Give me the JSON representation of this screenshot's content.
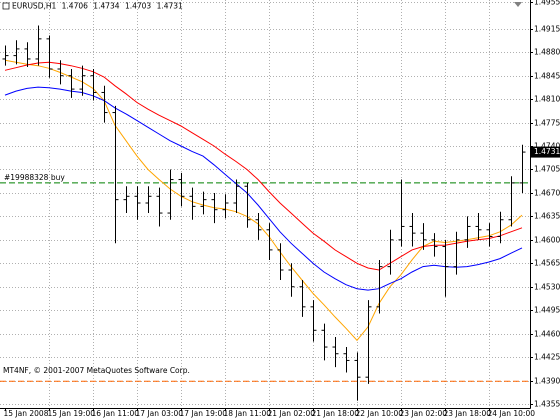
{
  "chart_data": {
    "type": "candlestick",
    "header": {
      "symbol": "EURUSD,H1",
      "open": 1.4706,
      "high": 1.4734,
      "low": 1.4703,
      "close": 1.4731
    },
    "copyright": "MT4NF, © 2001-2007 MetaQuotes Software Corp.",
    "categories": [
      "15 Jan 2008",
      null,
      null,
      null,
      "15 Jan 19:00",
      null,
      null,
      null,
      "16 Jan 11:00",
      null,
      null,
      null,
      "17 Jan 03:00",
      null,
      null,
      null,
      "17 Jan 19:00",
      null,
      null,
      null,
      "18 Jan 11:00",
      null,
      null,
      null,
      "21 Jan 02:00",
      null,
      null,
      null,
      "21 Jan 18:00",
      null,
      null,
      null,
      "22 Jan 10:00",
      null,
      null,
      null,
      "23 Jan 02:00",
      null,
      null,
      null,
      "23 Jan 18:00",
      null,
      null,
      null,
      "24 Jan 10:00",
      null,
      null,
      null
    ],
    "open": [
      1.487,
      1.4875,
      1.4885,
      1.487,
      1.49,
      1.4855,
      1.4845,
      1.4825,
      1.4845,
      1.482,
      1.479,
      1.466,
      1.4665,
      1.4655,
      1.4665,
      1.464,
      1.469,
      1.4665,
      1.465,
      1.466,
      1.4645,
      1.4655,
      1.468,
      1.463,
      1.4615,
      1.4585,
      1.4555,
      1.453,
      1.45,
      1.4465,
      1.444,
      1.443,
      1.442,
      1.4395,
      1.45,
      1.456,
      1.46,
      1.462,
      1.461,
      1.46,
      1.459,
      1.456,
      1.46,
      1.462,
      1.4615,
      1.4605,
      1.463,
      1.4685
    ],
    "high": [
      1.489,
      1.4898,
      1.4895,
      1.492,
      1.4905,
      1.4868,
      1.4855,
      1.486,
      1.4855,
      1.483,
      1.48,
      1.468,
      1.468,
      1.468,
      1.4678,
      1.4705,
      1.47,
      1.4678,
      1.4672,
      1.467,
      1.4668,
      1.469,
      1.4685,
      1.464,
      1.4625,
      1.4595,
      1.4565,
      1.454,
      1.451,
      1.4475,
      1.4455,
      1.444,
      1.4432,
      1.451,
      1.457,
      1.4615,
      1.469,
      1.464,
      1.4625,
      1.461,
      1.46,
      1.4612,
      1.4635,
      1.464,
      1.4625,
      1.4642,
      1.4695,
      1.4742
    ],
    "low": [
      1.486,
      1.4862,
      1.4858,
      1.486,
      1.4842,
      1.4832,
      1.4812,
      1.4815,
      1.4808,
      1.4775,
      1.4595,
      1.464,
      1.463,
      1.464,
      1.462,
      1.463,
      1.465,
      1.463,
      1.4638,
      1.4625,
      1.4632,
      1.464,
      1.4618,
      1.46,
      1.457,
      1.454,
      1.4515,
      1.4485,
      1.4448,
      1.442,
      1.441,
      1.4402,
      1.436,
      1.4385,
      1.449,
      1.4548,
      1.459,
      1.459,
      1.4585,
      1.4575,
      1.4515,
      1.4548,
      1.4588,
      1.46,
      1.459,
      1.4595,
      1.462,
      1.467
    ],
    "close": [
      1.4875,
      1.4885,
      1.487,
      1.49,
      1.4855,
      1.4845,
      1.4825,
      1.4845,
      1.482,
      1.479,
      1.466,
      1.4665,
      1.4655,
      1.4665,
      1.464,
      1.469,
      1.4665,
      1.465,
      1.466,
      1.4645,
      1.4655,
      1.468,
      1.463,
      1.4615,
      1.4585,
      1.4555,
      1.453,
      1.45,
      1.4465,
      1.444,
      1.443,
      1.442,
      1.4395,
      1.45,
      1.456,
      1.46,
      1.462,
      1.461,
      1.46,
      1.459,
      1.456,
      1.46,
      1.462,
      1.4615,
      1.4605,
      1.463,
      1.4685,
      1.4731
    ],
    "bar_color": "#000000",
    "moving_averages": [
      {
        "color": "#ffa500",
        "values": [
          1.4868,
          1.4865,
          1.4862,
          1.486,
          1.4856,
          1.485,
          1.4843,
          1.4836,
          1.4826,
          1.4808,
          1.4771,
          1.4748,
          1.4725,
          1.4705,
          1.469,
          1.4676,
          1.4665,
          1.4657,
          1.4652,
          1.4648,
          1.4646,
          1.4642,
          1.4635,
          1.4624,
          1.4605,
          1.4582,
          1.456,
          1.454,
          1.452,
          1.4503,
          1.4485,
          1.4468,
          1.445,
          1.447,
          1.4505,
          1.453,
          1.4548,
          1.457,
          1.459,
          1.4598,
          1.4596,
          1.4598,
          1.46,
          1.4603,
          1.4606,
          1.4612,
          1.4622,
          1.4637
        ]
      },
      {
        "color": "#ff0000",
        "values": [
          1.4853,
          1.4857,
          1.4861,
          1.4864,
          1.4865,
          1.4863,
          1.486,
          1.4856,
          1.4851,
          1.4843,
          1.483,
          1.4818,
          1.4805,
          1.4795,
          1.4786,
          1.4778,
          1.477,
          1.476,
          1.475,
          1.474,
          1.4728,
          1.4717,
          1.4705,
          1.469,
          1.4672,
          1.4655,
          1.464,
          1.4625,
          1.461,
          1.4598,
          1.4585,
          1.4575,
          1.4565,
          1.4558,
          1.4555,
          1.4565,
          1.4575,
          1.4585,
          1.459,
          1.4592,
          1.4592,
          1.4595,
          1.4598,
          1.46,
          1.4602,
          1.4606,
          1.4612,
          1.4618
        ]
      },
      {
        "color": "#0000ff",
        "values": [
          1.4816,
          1.4822,
          1.4826,
          1.4828,
          1.4827,
          1.4825,
          1.4822,
          1.482,
          1.4815,
          1.4808,
          1.4797,
          1.4788,
          1.4778,
          1.4768,
          1.4758,
          1.4748,
          1.474,
          1.4732,
          1.4725,
          1.4712,
          1.4698,
          1.4684,
          1.467,
          1.4652,
          1.4632,
          1.4612,
          1.4595,
          1.458,
          1.4565,
          1.4552,
          1.4542,
          1.4533,
          1.4527,
          1.4525,
          1.4527,
          1.4535,
          1.4542,
          1.4552,
          1.456,
          1.4562,
          1.456,
          1.4559,
          1.456,
          1.4563,
          1.4567,
          1.4572,
          1.458,
          1.4588
        ]
      }
    ],
    "order_line": {
      "label": "#19988328 buy",
      "price": 1.4685,
      "color": "#008000"
    },
    "stop_line": {
      "price": 1.4389,
      "color": "#ff6600"
    },
    "current_price": 1.4731,
    "ylim": [
      1.4349,
      1.4958
    ],
    "yticks": [
      1.4955,
      1.4915,
      {
        "value": 1.488,
        "label": "1.4880"
      },
      1.4845,
      {
        "value": 1.481,
        "label": "1.4810"
      },
      1.4775,
      {
        "value": 1.474,
        "label": "1.4740"
      },
      1.4705,
      {
        "value": 1.467,
        "label": "1.4670"
      },
      1.4635,
      {
        "value": 1.46,
        "label": "1.4600"
      },
      1.4565,
      {
        "value": 1.453,
        "label": "1.4530"
      },
      1.4495,
      {
        "value": 1.446,
        "label": "1.4460"
      },
      1.4425,
      {
        "value": 1.439,
        "label": "1.4390"
      },
      1.4355
    ],
    "grid": true
  }
}
